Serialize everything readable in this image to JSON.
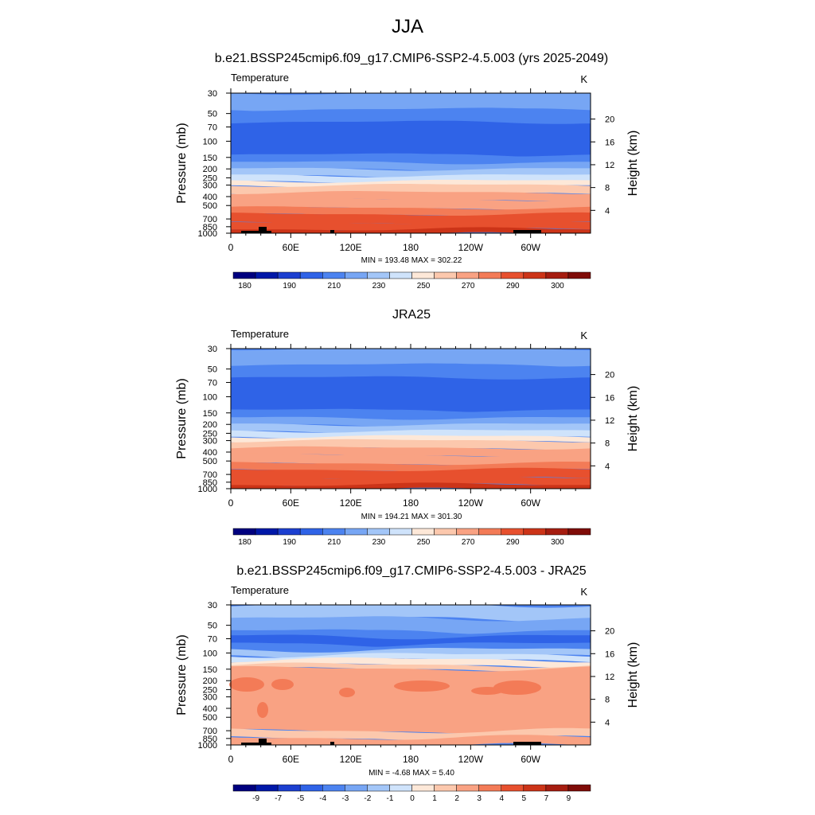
{
  "figure": {
    "title": "JJA"
  },
  "chart_data": [
    {
      "type": "heatmap",
      "title": "b.e21.BSSP245cmip6.f09_g17.CMIP6-SSP2-4.5.003 (yrs 2025-2049)",
      "variable": "Temperature",
      "units": "K",
      "xlabel": "",
      "ylabel": "Pressure (mb)",
      "ylabel_right": "Height (km)",
      "x_ticks": [
        "0",
        "60E",
        "120E",
        "180",
        "120W",
        "60W"
      ],
      "y_ticks": [
        "30",
        "50",
        "70",
        "100",
        "150",
        "200",
        "250",
        "300",
        "400",
        "500",
        "700",
        "850",
        "1000"
      ],
      "y_ticks_right": [
        "20",
        "16",
        "12",
        "8",
        "4"
      ],
      "colorbar_labels": [
        "180",
        "190",
        "210",
        "230",
        "250",
        "270",
        "290",
        "300"
      ],
      "colorbar_range": [
        175,
        305
      ],
      "stats": "MIN = 193.48  MAX = 302.22",
      "min": 193.48,
      "max": 302.22
    },
    {
      "type": "heatmap",
      "title": "JRA25",
      "variable": "Temperature",
      "units": "K",
      "xlabel": "",
      "ylabel": "Pressure (mb)",
      "ylabel_right": "Height (km)",
      "x_ticks": [
        "0",
        "60E",
        "120E",
        "180",
        "120W",
        "60W"
      ],
      "y_ticks": [
        "30",
        "50",
        "70",
        "100",
        "150",
        "200",
        "250",
        "300",
        "400",
        "500",
        "700",
        "850",
        "1000"
      ],
      "y_ticks_right": [
        "20",
        "16",
        "12",
        "8",
        "4"
      ],
      "colorbar_labels": [
        "180",
        "190",
        "210",
        "230",
        "250",
        "270",
        "290",
        "300"
      ],
      "colorbar_range": [
        175,
        305
      ],
      "stats": "MIN = 194.21  MAX = 301.30",
      "min": 194.21,
      "max": 301.3
    },
    {
      "type": "heatmap",
      "title": "b.e21.BSSP245cmip6.f09_g17.CMIP6-SSP2-4.5.003 - JRA25",
      "variable": "Temperature",
      "units": "K",
      "xlabel": "",
      "ylabel": "Pressure (mb)",
      "ylabel_right": "Height (km)",
      "x_ticks": [
        "0",
        "60E",
        "120E",
        "180",
        "120W",
        "60W"
      ],
      "y_ticks": [
        "30",
        "50",
        "70",
        "100",
        "150",
        "200",
        "250",
        "300",
        "400",
        "500",
        "700",
        "850",
        "1000"
      ],
      "y_ticks_right": [
        "20",
        "16",
        "12",
        "8",
        "4"
      ],
      "colorbar_labels": [
        "-9",
        "-7",
        "-5",
        "-4",
        "-3",
        "-2",
        "-1",
        "0",
        "1",
        "2",
        "3",
        "4",
        "5",
        "7",
        "9"
      ],
      "colorbar_range": [
        -10,
        10
      ],
      "stats": "MIN =  -4.68  MAX =   5.40",
      "min": -4.68,
      "max": 5.4
    }
  ],
  "palette": [
    "#00007f",
    "#0018a8",
    "#1c3fd0",
    "#2f63e7",
    "#4c83f0",
    "#77a6f4",
    "#a3c6f8",
    "#cfe3fb",
    "#fde8d8",
    "#fcc8ad",
    "#f9a283",
    "#f37b57",
    "#e7502e",
    "#cc3418",
    "#a61d10",
    "#7f0c08"
  ],
  "terrain_color": "#000000"
}
